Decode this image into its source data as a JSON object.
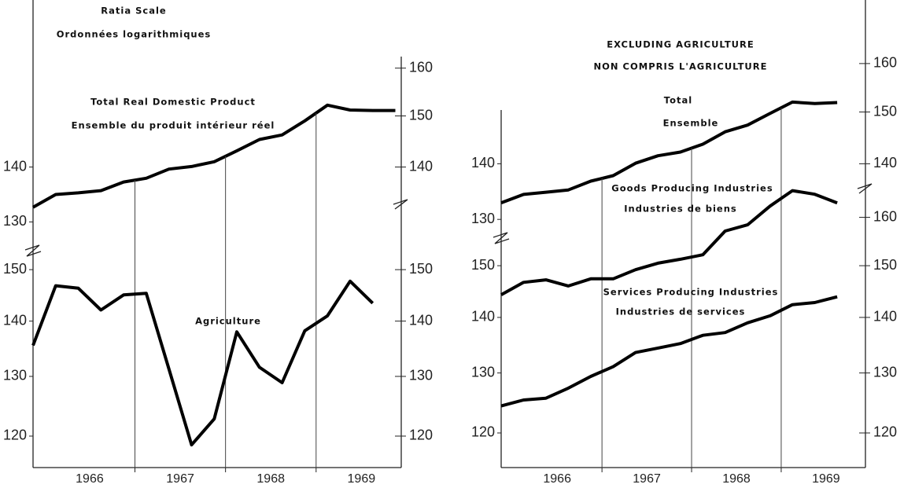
{
  "header": {
    "scale_en": "Ratia Scale",
    "scale_fr": "Ordonnées logarithmiques"
  },
  "chart_data": [
    {
      "type": "line",
      "log_scale": true,
      "x": [
        1965.875,
        1966.125,
        1966.375,
        1966.625,
        1966.875,
        1967.125,
        1967.375,
        1967.625,
        1967.875,
        1968.125,
        1968.375,
        1968.625,
        1968.875,
        1969.125,
        1969.375,
        1969.625,
        1969.875
      ],
      "series": [
        {
          "name": "Total Real Domestic Product",
          "name_fr": "Ensemble du produit intérieur réel",
          "color": "#000000",
          "values": [
            132.6,
            134.9,
            135.2,
            135.6,
            137.2,
            137.9,
            139.6,
            140.1,
            141.0,
            143.1,
            145.3,
            146.2,
            149.0,
            152.2,
            151.2,
            151.1,
            151.1
          ]
        }
      ],
      "xlim": [
        1965.875,
        1969.94
      ],
      "ylim": [
        128,
        162
      ],
      "yticks": [
        130,
        140
      ],
      "y2lim": [
        128,
        162
      ],
      "y2ticks": [
        140,
        150,
        160
      ]
    },
    {
      "type": "line",
      "log_scale": true,
      "x": [
        1965.875,
        1966.125,
        1966.375,
        1966.625,
        1966.875,
        1967.125,
        1967.375,
        1967.625,
        1967.875,
        1968.125,
        1968.375,
        1968.625,
        1968.875,
        1969.125,
        1969.375,
        1969.625
      ],
      "series": [
        {
          "name": "Agriculture",
          "color": "#000000",
          "values": [
            135.5,
            146.8,
            146.3,
            142.1,
            145.0,
            145.3,
            131.3,
            118.6,
            122.8,
            138.0,
            131.6,
            128.9,
            138.2,
            141.0,
            147.7,
            143.4
          ]
        }
      ],
      "xlim": [
        1965.875,
        1969.94
      ],
      "ylim": [
        117,
        155
      ],
      "yticks": [
        120,
        130,
        140,
        150
      ],
      "y2lim": [
        117,
        155
      ],
      "y2ticks": [
        120,
        130,
        140,
        150
      ],
      "xticks": [
        {
          "value": 1966.5,
          "label": "1966"
        },
        {
          "value": 1967.5,
          "label": "1967"
        },
        {
          "value": 1968.5,
          "label": "1968"
        },
        {
          "value": 1969.5,
          "label": "1969"
        }
      ],
      "xgrid": [
        1967,
        1968,
        1969
      ]
    },
    {
      "type": "line",
      "log_scale": true,
      "title": "EXCLUDING AGRICULTURE",
      "subtitle": "NON COMPRIS L'AGRICULTURE",
      "x": [
        1965.875,
        1966.125,
        1966.375,
        1966.625,
        1966.875,
        1967.125,
        1967.375,
        1967.625,
        1967.875,
        1968.125,
        1968.375,
        1968.625,
        1968.875,
        1969.125,
        1969.375,
        1969.625
      ],
      "series": [
        {
          "name": "Total",
          "name_fr": "Ensemble",
          "color": "#000000",
          "values": [
            132.9,
            134.4,
            134.8,
            135.2,
            136.8,
            137.8,
            140.1,
            141.5,
            142.2,
            143.7,
            146.1,
            147.4,
            149.7,
            152.0,
            151.7,
            151.9
          ]
        }
      ],
      "xlim": [
        1965.875,
        1969.94
      ],
      "ylim": [
        128,
        162
      ],
      "yticks": [
        130,
        140
      ],
      "y2lim": [
        128,
        162
      ],
      "y2ticks": [
        140,
        150,
        160
      ]
    },
    {
      "type": "line",
      "log_scale": true,
      "x": [
        1965.875,
        1966.125,
        1966.375,
        1966.625,
        1966.875,
        1967.125,
        1967.375,
        1967.625,
        1967.875,
        1968.125,
        1968.375,
        1968.625,
        1968.875,
        1969.125,
        1969.375,
        1969.625
      ],
      "series": [
        {
          "name": "Goods Producing Industries",
          "name_fr": "Industries de biens",
          "color": "#000000",
          "values": [
            144.3,
            146.7,
            147.2,
            146.0,
            147.4,
            147.4,
            149.2,
            150.5,
            151.3,
            152.2,
            157.1,
            158.4,
            162.4,
            165.8,
            165.0,
            163.1
          ]
        },
        {
          "name": "Services Producing Industries",
          "name_fr": "Industries de services",
          "color": "#000000",
          "values": [
            124.4,
            125.4,
            125.7,
            127.4,
            129.4,
            131.1,
            133.6,
            134.4,
            135.2,
            136.7,
            137.2,
            139.0,
            140.3,
            142.4,
            142.8,
            143.9
          ]
        }
      ],
      "xlim": [
        1965.875,
        1969.94
      ],
      "ylim": [
        118,
        168
      ],
      "yticks": [
        120,
        130,
        140,
        150
      ],
      "y2lim": [
        118,
        168
      ],
      "y2ticks": [
        120,
        130,
        140,
        150,
        160
      ],
      "xticks": [
        {
          "value": 1966.5,
          "label": "1966"
        },
        {
          "value": 1967.5,
          "label": "1967"
        },
        {
          "value": 1968.5,
          "label": "1968"
        },
        {
          "value": 1969.5,
          "label": "1969"
        }
      ],
      "xgrid": [
        1967,
        1968,
        1969
      ]
    }
  ]
}
